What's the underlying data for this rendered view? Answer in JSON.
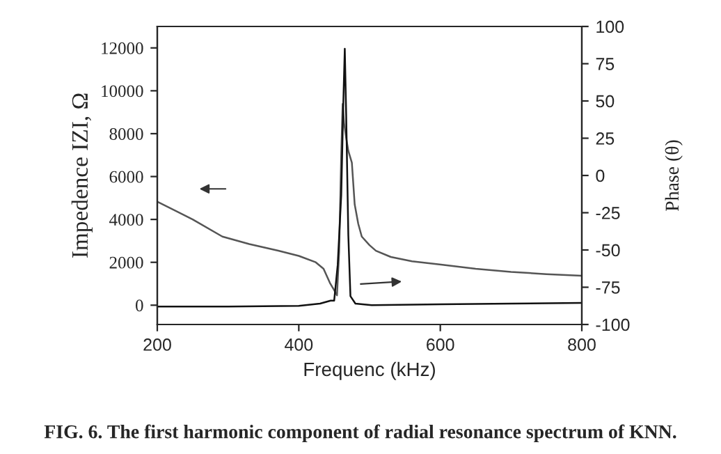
{
  "chart_data": {
    "type": "line",
    "xlabel": "Frequenc (kHz)",
    "ylabel": "Impedence IZI, Ω",
    "y2label": "Phase (θ)",
    "xlim": [
      200,
      800
    ],
    "xticks": [
      200,
      400,
      600,
      800
    ],
    "ylim": [
      -900,
      13000
    ],
    "yticks": [
      0,
      2000,
      4000,
      6000,
      8000,
      10000,
      12000
    ],
    "y2lim": [
      -100,
      100
    ],
    "y2ticks": [
      -100,
      -75,
      -50,
      -25,
      0,
      25,
      50,
      75,
      100
    ],
    "series": [
      {
        "color": "#555555",
        "x": [
          200,
          250,
          292,
          330,
          371,
          400,
          424,
          435,
          444,
          450,
          454,
          457,
          460,
          462,
          464,
          467,
          470,
          475,
          479,
          484,
          489,
          500,
          509,
          530,
          560,
          601,
          650,
          700,
          750,
          800
        ],
        "values": [
          4830,
          4000,
          3200,
          2850,
          2540,
          2300,
          2000,
          1700,
          1040,
          700,
          460,
          2500,
          7000,
          9390,
          8500,
          7800,
          7200,
          6650,
          4700,
          3800,
          3200,
          2800,
          2540,
          2250,
          2050,
          1890,
          1700,
          1550,
          1450,
          1370
        ]
      },
      {
        "color": "#111111",
        "axis": "y2",
        "x": [
          200,
          300,
          400,
          430,
          445,
          450,
          455,
          460,
          463,
          465,
          467,
          470,
          473,
          480,
          503,
          600,
          700,
          800
        ],
        "values": [
          -88,
          -88,
          -87.5,
          -86,
          -84,
          -84,
          -60,
          -13,
          50,
          85,
          40,
          -40,
          -81,
          -86,
          -87,
          -86.5,
          -86,
          -85.5
        ]
      }
    ],
    "annotations": [
      "FIG. 6. The first harmonic component of radial resonance spectrum of KNN."
    ]
  }
}
